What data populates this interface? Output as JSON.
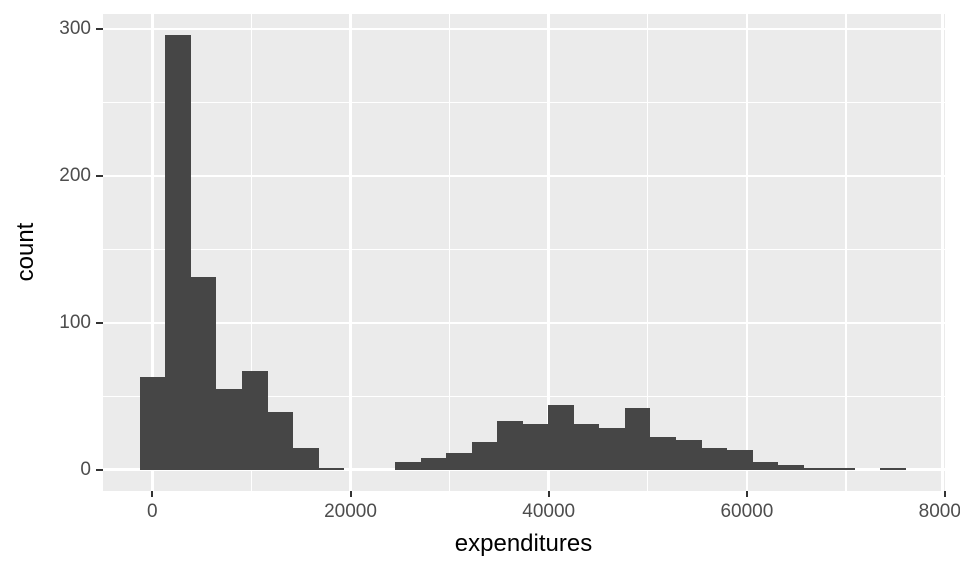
{
  "chart_data": {
    "type": "histogram",
    "title": "",
    "xlabel": "expenditures",
    "ylabel": "count",
    "bin_start": -1251,
    "binwidth": 2576,
    "counts": [
      63,
      296,
      131,
      55,
      67,
      39,
      15,
      1,
      0,
      0,
      5,
      8,
      11,
      19,
      33,
      31,
      44,
      31,
      28,
      42,
      22,
      20,
      15,
      13,
      5,
      3,
      1,
      1,
      0,
      1
    ],
    "xlim": [
      -4975,
      79990
    ],
    "ylim": [
      -14.6,
      310.3
    ],
    "x_major_ticks": [
      0,
      20000,
      40000,
      60000,
      80000
    ],
    "x_tick_labels": [
      "0",
      "20000",
      "40000",
      "60000",
      "80000"
    ],
    "x_minor_ticks": [
      10000,
      30000,
      50000,
      70000
    ],
    "y_major_ticks": [
      0,
      100,
      200,
      300
    ],
    "y_tick_labels": [
      "0",
      "100",
      "200",
      "300"
    ],
    "y_minor_ticks": [
      50,
      150,
      250
    ],
    "grid": true,
    "legend": false,
    "colors": {
      "bar_fill": "#464646",
      "panel_background": "#EBEBEB",
      "gridline": "#FFFFFF",
      "tick_label": "#4D4D4D",
      "axis_title": "#000000",
      "tick_mark": "#333333",
      "page_background": "#FFFFFF"
    }
  }
}
